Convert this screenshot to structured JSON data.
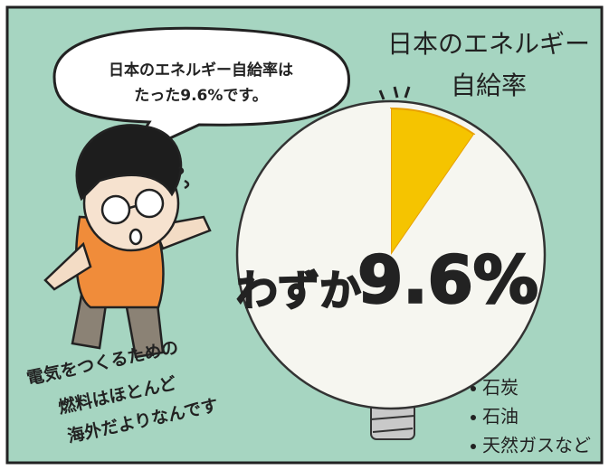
{
  "chart_data": {
    "type": "pie",
    "title_lines": [
      "日本のエネルギー",
      "自給率"
    ],
    "values": [
      9.6,
      90.4
    ],
    "colors": [
      "#f5c400",
      "#f6f6f0"
    ],
    "value_labels": [
      "9.6%",
      null
    ],
    "highlight_prefix": "わずか",
    "other_sources": [
      "石炭",
      "石油",
      "天然ガスなど"
    ],
    "speech_lines": [
      "日本のエネルギー自給率は",
      "たった9.6%です。"
    ],
    "caption_lines": [
      "電気をつくるための",
      "燃料はほとんど",
      "海外だよりなんです"
    ]
  }
}
